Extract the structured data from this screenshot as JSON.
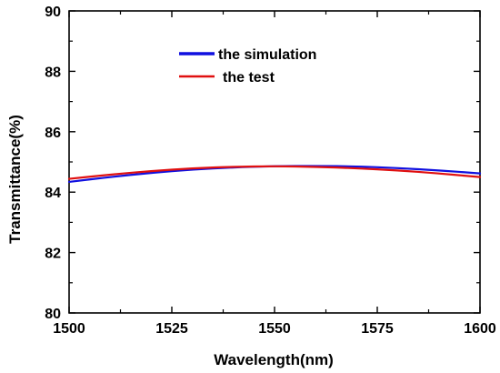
{
  "chart_data": {
    "type": "line",
    "title": "",
    "xlabel": "Wavelength(nm)",
    "ylabel": "Transmittance(%)",
    "xlim": [
      1500,
      1600
    ],
    "ylim": [
      80,
      90
    ],
    "xticks": [
      1500,
      1525,
      1550,
      1575,
      1600
    ],
    "yticks": [
      80,
      82,
      84,
      86,
      88,
      90
    ],
    "grid": false,
    "legend_position": "top-center",
    "series": [
      {
        "name": "the simulation",
        "color": "#1010e0",
        "x": [
          1500,
          1510,
          1520,
          1530,
          1540,
          1550,
          1560,
          1570,
          1580,
          1590,
          1600
        ],
        "y": [
          84.34,
          84.5,
          84.64,
          84.75,
          84.82,
          84.86,
          84.87,
          84.85,
          84.8,
          84.72,
          84.62
        ]
      },
      {
        "name": "the test",
        "color": "#e01010",
        "x": [
          1500,
          1510,
          1520,
          1530,
          1540,
          1550,
          1560,
          1570,
          1580,
          1590,
          1600
        ],
        "y": [
          84.44,
          84.58,
          84.7,
          84.79,
          84.84,
          84.86,
          84.84,
          84.79,
          84.72,
          84.62,
          84.5
        ]
      }
    ]
  }
}
